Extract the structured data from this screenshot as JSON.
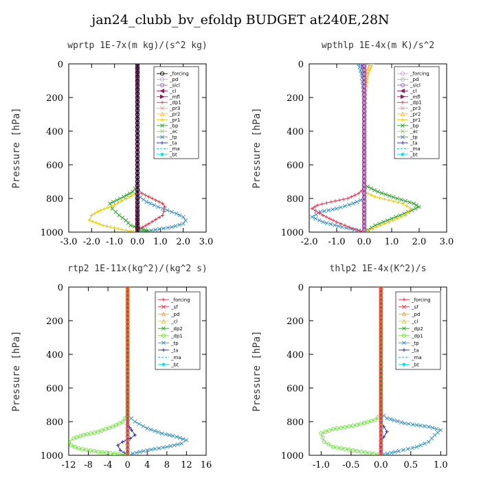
{
  "figure_title": "jan24_clubb_bv_efoldp  BUDGET at240E,28N",
  "chart_data": [
    {
      "type": "line",
      "title": "wprtp  1E-7x(m kg)/(s^2 kg)",
      "ylabel": "Pressure [hPa]",
      "xlim": [
        -3.0,
        3.0
      ],
      "ylim": [
        1000,
        0
      ],
      "xticks": [
        "-3.0",
        "-2.0",
        "-1.0",
        "0.0",
        "1.0",
        "2.0",
        "3.0"
      ],
      "xtick_values": [
        -3,
        -2,
        -1,
        0,
        1,
        2,
        3
      ],
      "yticks": [
        "0",
        "200",
        "400",
        "600",
        "800",
        "1000"
      ],
      "ytick_values": [
        0,
        200,
        400,
        600,
        800,
        1000
      ],
      "legend_position": "top-right",
      "series": [
        {
          "name": "_forcing",
          "color": "#000000",
          "marker": "o",
          "x": [
            0,
            0,
            0,
            0
          ],
          "y": [
            0,
            400,
            800,
            1000
          ]
        },
        {
          "name": "_pd",
          "color": "#c8a0e0",
          "marker": "o",
          "x": [
            0,
            0
          ],
          "y": [
            0,
            1000
          ]
        },
        {
          "name": "_sicl",
          "color": "#9a66cc",
          "marker": "o",
          "x": [
            0,
            0
          ],
          "y": [
            0,
            1000
          ]
        },
        {
          "name": "_cl",
          "color": "#8b1a5c",
          "marker": "<",
          "x": [
            0,
            0
          ],
          "y": [
            0,
            1000
          ]
        },
        {
          "name": "_mfl",
          "color": "#8b1a5c",
          "marker": ">",
          "x": [
            0,
            0
          ],
          "y": [
            0,
            1000
          ]
        },
        {
          "name": "_dp1",
          "color": "#e0304a",
          "marker": "+",
          "x": [
            0,
            0,
            0.05,
            0.2,
            0.5,
            0.8,
            1.1,
            1.2,
            1.1,
            0.5,
            0.1,
            0
          ],
          "y": [
            0,
            700,
            750,
            770,
            790,
            810,
            830,
            850,
            900,
            950,
            980,
            1000
          ]
        },
        {
          "name": "_pr3",
          "color": "#f0a0a0",
          "marker": "x",
          "x": [
            0,
            0
          ],
          "y": [
            0,
            1000
          ]
        },
        {
          "name": "_pr2",
          "color": "#f0c040",
          "marker": "^",
          "x": [
            0,
            0
          ],
          "y": [
            0,
            1000
          ]
        },
        {
          "name": "_pr1",
          "color": "#e6c800",
          "marker": "+",
          "x": [
            0,
            0,
            -0.3,
            -0.7,
            -1.0,
            -1.6,
            -2.0,
            -2.1,
            -1.5,
            -0.5,
            0
          ],
          "y": [
            0,
            760,
            790,
            815,
            840,
            870,
            900,
            930,
            960,
            990,
            1000
          ]
        },
        {
          "name": "_bp",
          "color": "#2aa02a",
          "marker": "x",
          "x": [
            0,
            0,
            -0.2,
            -0.6,
            -0.9,
            -1.2,
            -1.1,
            -0.8,
            -0.5,
            -0.3,
            0.2,
            0.5,
            0
          ],
          "y": [
            0,
            720,
            760,
            790,
            810,
            830,
            860,
            900,
            930,
            960,
            980,
            995,
            1000
          ]
        },
        {
          "name": "_ac",
          "color": "#90d070",
          "marker": "x",
          "x": [
            0,
            0
          ],
          "y": [
            0,
            1000
          ]
        },
        {
          "name": "_tp",
          "color": "#3090c0",
          "marker": "x",
          "x": [
            0,
            0,
            0.4,
            0.9,
            1.3,
            1.7,
            2.0,
            2.1,
            2.0,
            1.5,
            0.6,
            0
          ],
          "y": [
            0,
            780,
            820,
            850,
            870,
            890,
            910,
            930,
            950,
            970,
            990,
            1000
          ]
        },
        {
          "name": "_ta",
          "color": "#2020c0",
          "marker": "+",
          "x": [
            0,
            0,
            -0.02,
            0.02,
            0
          ],
          "y": [
            0,
            880,
            920,
            960,
            1000
          ]
        },
        {
          "name": "_ma",
          "color": "#20b0e0",
          "marker": "-",
          "x": [
            0,
            0
          ],
          "y": [
            0,
            1000
          ]
        },
        {
          "name": "_bt",
          "color": "#00e0e0",
          "marker": "*",
          "x": [
            0,
            0
          ],
          "y": [
            0,
            1000
          ]
        }
      ]
    },
    {
      "type": "line",
      "title": "wpthlp  1E-4x(m K)/s^2",
      "ylabel": "Pressure [hPa]",
      "xlim": [
        -2.0,
        3.0
      ],
      "ylim": [
        1000,
        0
      ],
      "xticks": [
        "-2.0",
        "-1.0",
        "0.0",
        "1.0",
        "2.0",
        "3.0"
      ],
      "xtick_values": [
        -2,
        -1,
        0,
        1,
        2,
        3
      ],
      "yticks": [
        "0",
        "200",
        "400",
        "600",
        "800",
        "1000"
      ],
      "ytick_values": [
        0,
        200,
        400,
        600,
        800,
        1000
      ],
      "legend_position": "top-right",
      "series": [
        {
          "name": "_forcing",
          "color": "#c8a0e0",
          "marker": "o",
          "x": [
            0,
            0
          ],
          "y": [
            0,
            1000
          ]
        },
        {
          "name": "_pd",
          "color": "#c8a0e0",
          "marker": "o",
          "x": [
            0,
            0
          ],
          "y": [
            0,
            1000
          ]
        },
        {
          "name": "_sicl",
          "color": "#9a66cc",
          "marker": "o",
          "x": [
            0,
            0
          ],
          "y": [
            0,
            1000
          ]
        },
        {
          "name": "_cl",
          "color": "#8b1a5c",
          "marker": "<",
          "x": [
            0,
            0
          ],
          "y": [
            0,
            1000
          ]
        },
        {
          "name": "_mfl",
          "color": "#8b1a5c",
          "marker": ">",
          "x": [
            0,
            0
          ],
          "y": [
            0,
            1000
          ]
        },
        {
          "name": "_dp1",
          "color": "#e0304a",
          "marker": "+",
          "x": [
            0,
            0,
            -0.2,
            -0.6,
            -1.2,
            -1.7,
            -1.9,
            -1.5,
            -1.0,
            -0.4,
            0
          ],
          "y": [
            0,
            740,
            770,
            800,
            820,
            840,
            860,
            900,
            940,
            980,
            1000
          ]
        },
        {
          "name": "_pr3",
          "color": "#f0a0a0",
          "marker": "x",
          "x": [
            0,
            0
          ],
          "y": [
            0,
            1000
          ]
        },
        {
          "name": "_pr2",
          "color": "#f0c040",
          "marker": "^",
          "x": [
            0.2,
            0.1,
            0.05,
            0
          ],
          "y": [
            0,
            60,
            150,
            400
          ]
        },
        {
          "name": "_pr1",
          "color": "#e6c800",
          "marker": "+",
          "x": [
            0.3,
            0.15,
            0.05,
            0,
            0,
            0.4,
            0.9,
            1.4,
            1.7,
            1.5,
            0.9,
            0.3,
            0
          ],
          "y": [
            0,
            60,
            150,
            300,
            760,
            790,
            810,
            830,
            860,
            900,
            940,
            980,
            1000
          ]
        },
        {
          "name": "_bp",
          "color": "#2aa02a",
          "marker": "x",
          "x": [
            0,
            0,
            0.5,
            1.2,
            1.8,
            2.0,
            1.6,
            1.0,
            0.4,
            0
          ],
          "y": [
            0,
            720,
            760,
            800,
            830,
            850,
            880,
            920,
            960,
            1000
          ]
        },
        {
          "name": "_ac",
          "color": "#90d070",
          "marker": "x",
          "x": [
            0,
            0
          ],
          "y": [
            0,
            1000
          ]
        },
        {
          "name": "_tp",
          "color": "#3090c0",
          "marker": "x",
          "x": [
            -0.2,
            -0.1,
            0,
            0,
            -0.4,
            -1.0,
            -1.6,
            -1.9,
            -1.5,
            -0.8,
            -0.2,
            0
          ],
          "y": [
            0,
            60,
            200,
            800,
            830,
            860,
            880,
            910,
            940,
            970,
            990,
            1000
          ]
        },
        {
          "name": "_ta",
          "color": "#2020c0",
          "marker": "+",
          "x": [
            -0.1,
            0,
            0,
            0
          ],
          "y": [
            0,
            100,
            600,
            1000
          ]
        },
        {
          "name": "_ma",
          "color": "#20b0e0",
          "marker": "-",
          "x": [
            0,
            0
          ],
          "y": [
            0,
            1000
          ]
        },
        {
          "name": "_bt",
          "color": "#00e0e0",
          "marker": "*",
          "x": [
            0,
            0
          ],
          "y": [
            0,
            1000
          ]
        }
      ]
    },
    {
      "type": "line",
      "title": "rtp2  1E-11x(kg^2)/(kg^2 s)",
      "ylabel": "Pressure [hPa]",
      "xlim": [
        -12,
        16
      ],
      "ylim": [
        1000,
        0
      ],
      "xticks": [
        "-12",
        "-8",
        "-4",
        "0",
        "4",
        "8",
        "12",
        "16"
      ],
      "xtick_values": [
        -12,
        -8,
        -4,
        0,
        4,
        8,
        12,
        16
      ],
      "yticks": [
        "0",
        "200",
        "400",
        "600",
        "800",
        "1000"
      ],
      "ytick_values": [
        0,
        200,
        400,
        600,
        800,
        1000
      ],
      "legend_position": "top-right",
      "series": [
        {
          "name": "_forcing",
          "color": "#e0304a",
          "marker": "+",
          "x": [
            0,
            0
          ],
          "y": [
            0,
            1000
          ]
        },
        {
          "name": "_sf",
          "color": "#e0304a",
          "marker": "x",
          "x": [
            0,
            0
          ],
          "y": [
            0,
            1000
          ]
        },
        {
          "name": "_pd",
          "color": "#f0a020",
          "marker": "^",
          "x": [
            0,
            0
          ],
          "y": [
            0,
            1000
          ]
        },
        {
          "name": "_cl",
          "color": "#f0c040",
          "marker": "^",
          "x": [
            0,
            0
          ],
          "y": [
            0,
            1000
          ]
        },
        {
          "name": "_dp2",
          "color": "#2aa02a",
          "marker": "x",
          "x": [
            0,
            0
          ],
          "y": [
            0,
            1000
          ]
        },
        {
          "name": "_dp1",
          "color": "#70e040",
          "marker": "o",
          "x": [
            0,
            0,
            -1,
            -3,
            -6,
            -9,
            -11,
            -12,
            -11.5,
            -10,
            -6,
            -1,
            0
          ],
          "y": [
            0,
            760,
            800,
            830,
            860,
            880,
            900,
            920,
            940,
            960,
            980,
            995,
            1000
          ]
        },
        {
          "name": "_tp",
          "color": "#3090c0",
          "marker": "x",
          "x": [
            0,
            0,
            1.5,
            4,
            7,
            10,
            12,
            11,
            8,
            4,
            1,
            0
          ],
          "y": [
            0,
            760,
            800,
            840,
            870,
            890,
            910,
            930,
            950,
            970,
            990,
            1000
          ]
        },
        {
          "name": "_ta",
          "color": "#2020c0",
          "marker": "+",
          "x": [
            0,
            0,
            0.8,
            1.5,
            0.5,
            -1,
            -2,
            -1.5,
            0
          ],
          "y": [
            0,
            820,
            850,
            880,
            900,
            920,
            940,
            970,
            1000
          ]
        },
        {
          "name": "_ma",
          "color": "#20b0e0",
          "marker": "-",
          "x": [
            0,
            0
          ],
          "y": [
            0,
            1000
          ]
        },
        {
          "name": "_bt",
          "color": "#00e0e0",
          "marker": "*",
          "x": [
            0,
            0
          ],
          "y": [
            0,
            1000
          ]
        }
      ]
    },
    {
      "type": "line",
      "title": "thlp2  1E-4x(K^2)/s",
      "ylabel": "Pressure [hPa]",
      "xlim": [
        -1.2,
        1.1
      ],
      "ylim": [
        1000,
        0
      ],
      "xticks": [
        "-1.0",
        "-0.5",
        "0.0",
        "0.5",
        "1.0"
      ],
      "xtick_values": [
        -1.0,
        -0.5,
        0.0,
        0.5,
        1.0
      ],
      "yticks": [
        "0",
        "200",
        "400",
        "600",
        "800",
        "1000"
      ],
      "ytick_values": [
        0,
        200,
        400,
        600,
        800,
        1000
      ],
      "legend_position": "top-right",
      "series": [
        {
          "name": "_forcing",
          "color": "#e0304a",
          "marker": "+",
          "x": [
            0,
            0
          ],
          "y": [
            0,
            1000
          ]
        },
        {
          "name": "_sf",
          "color": "#e0304a",
          "marker": "x",
          "x": [
            0,
            0
          ],
          "y": [
            0,
            1000
          ]
        },
        {
          "name": "_pd",
          "color": "#f0a020",
          "marker": "^",
          "x": [
            0,
            0
          ],
          "y": [
            0,
            1000
          ]
        },
        {
          "name": "_cl",
          "color": "#f0c040",
          "marker": "^",
          "x": [
            0,
            0
          ],
          "y": [
            0,
            1000
          ]
        },
        {
          "name": "_dp2",
          "color": "#2aa02a",
          "marker": "x",
          "x": [
            0,
            0
          ],
          "y": [
            0,
            1000
          ]
        },
        {
          "name": "_dp1",
          "color": "#70e040",
          "marker": "o",
          "x": [
            0,
            0,
            -0.1,
            -0.4,
            -0.8,
            -1.0,
            -0.95,
            -0.8,
            -0.4,
            -0.05,
            0
          ],
          "y": [
            0,
            760,
            790,
            820,
            845,
            870,
            920,
            950,
            975,
            995,
            1000
          ]
        },
        {
          "name": "_tp",
          "color": "#3090c0",
          "marker": "x",
          "x": [
            0,
            0,
            0.1,
            0.4,
            0.8,
            1.0,
            0.9,
            0.8,
            0.6,
            0.3,
            0.05,
            0
          ],
          "y": [
            0,
            750,
            780,
            810,
            830,
            850,
            880,
            920,
            950,
            975,
            995,
            1000
          ]
        },
        {
          "name": "_ta",
          "color": "#2020c0",
          "marker": "+",
          "x": [
            0,
            0,
            0.05,
            0.1,
            0.05,
            0,
            0
          ],
          "y": [
            0,
            800,
            830,
            860,
            890,
            920,
            1000
          ]
        },
        {
          "name": "_ma",
          "color": "#20b0e0",
          "marker": "-",
          "x": [
            0,
            0
          ],
          "y": [
            0,
            1000
          ]
        },
        {
          "name": "_bt",
          "color": "#00e0e0",
          "marker": "*",
          "x": [
            0,
            0
          ],
          "y": [
            0,
            1000
          ]
        }
      ]
    }
  ]
}
